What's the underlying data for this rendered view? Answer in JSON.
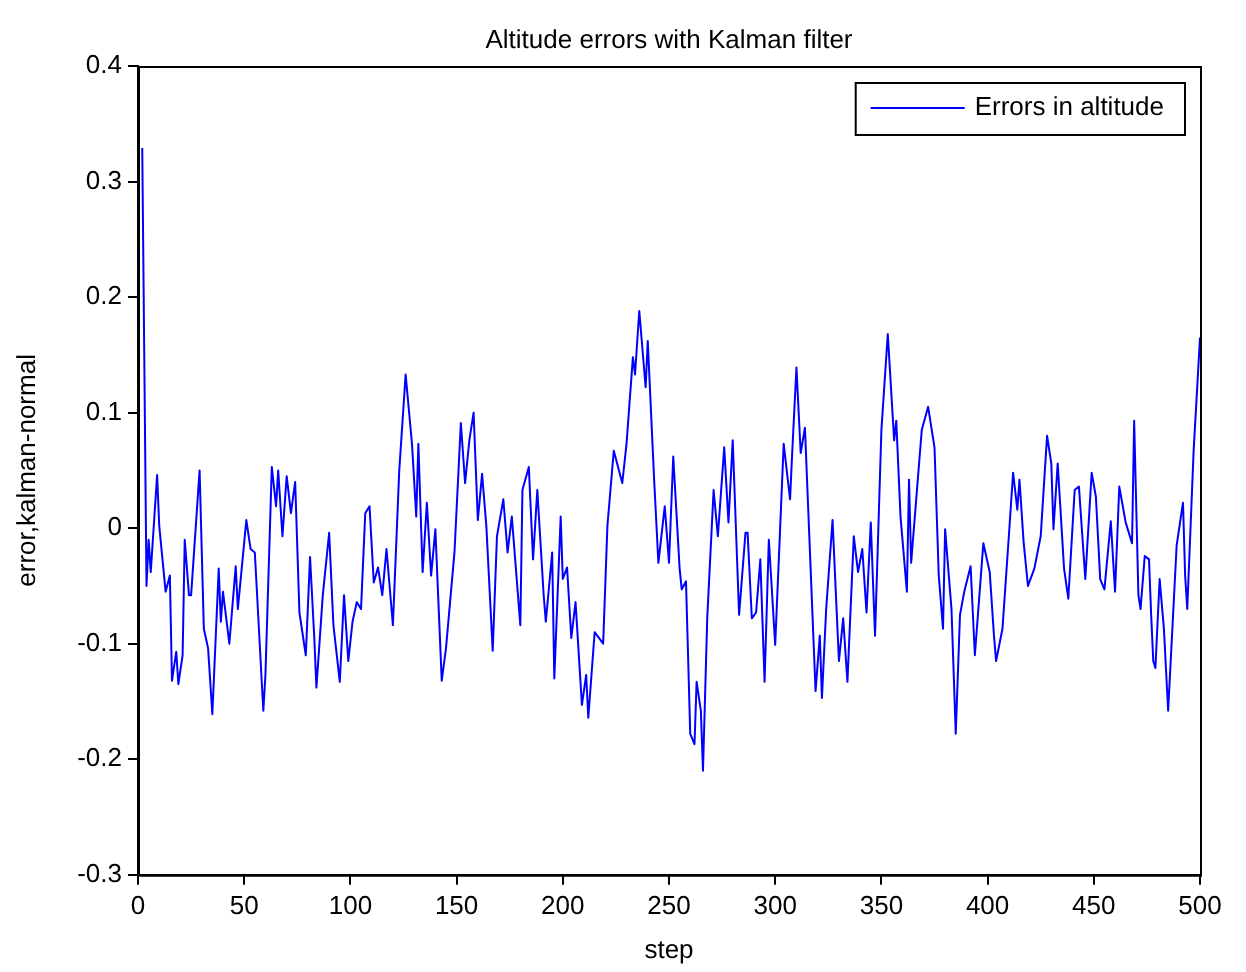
{
  "chart_data": {
    "type": "line",
    "title": "Altitude errors with Kalman filter",
    "xlabel": "step",
    "ylabel": "error,kalman-normal",
    "x": [
      2,
      4,
      5,
      6,
      9,
      10,
      13,
      15,
      16,
      18,
      19,
      21,
      22,
      24,
      25,
      29,
      31,
      33,
      35,
      38,
      39,
      40,
      43,
      46,
      47,
      51,
      53,
      55,
      59,
      60,
      63,
      65,
      66,
      68,
      70,
      72,
      74,
      76,
      79,
      81,
      83,
      84,
      87,
      90,
      92,
      95,
      97,
      99,
      101,
      103,
      105,
      107,
      109,
      111,
      113,
      115,
      117,
      120,
      123,
      126,
      129,
      131,
      132,
      134,
      136,
      138,
      140,
      143,
      145,
      149,
      152,
      154,
      156,
      158,
      160,
      162,
      164,
      167,
      169,
      172,
      174,
      176,
      180,
      181,
      184,
      186,
      188,
      191,
      192,
      195,
      196,
      199,
      200,
      202,
      204,
      206,
      209,
      211,
      212,
      215,
      219,
      221,
      224,
      228,
      230,
      233,
      234,
      236,
      239,
      240,
      243,
      245,
      248,
      250,
      252,
      255,
      256,
      258,
      260,
      262,
      263,
      265,
      266,
      268,
      271,
      273,
      276,
      278,
      280,
      283,
      286,
      287,
      289,
      291,
      293,
      295,
      297,
      300,
      304,
      307,
      308,
      310,
      312,
      314,
      319,
      321,
      322,
      324,
      327,
      330,
      332,
      334,
      337,
      339,
      341,
      343,
      345,
      347,
      350,
      353,
      356,
      357,
      359,
      362,
      363,
      364,
      369,
      372,
      375,
      377,
      379,
      380,
      383,
      385,
      387,
      389,
      392,
      394,
      398,
      401,
      403,
      404,
      407,
      410,
      412,
      414,
      415,
      417,
      419,
      422,
      425,
      428,
      430,
      431,
      433,
      436,
      438,
      441,
      443,
      446,
      449,
      451,
      453,
      455,
      458,
      460,
      462,
      465,
      468,
      469,
      471,
      472,
      474,
      476,
      477,
      478,
      479,
      481,
      483,
      485,
      489,
      491,
      492,
      493,
      494,
      497,
      500
    ],
    "series": [
      {
        "name": "Errors in altitude",
        "color": "#0000ff",
        "values": [
          0.329,
          -0.05,
          -0.01,
          -0.038,
          0.046,
          0.002,
          -0.055,
          -0.041,
          -0.132,
          -0.107,
          -0.135,
          -0.11,
          -0.01,
          -0.058,
          -0.058,
          0.05,
          -0.087,
          -0.104,
          -0.161,
          -0.035,
          -0.081,
          -0.055,
          -0.1,
          -0.033,
          -0.07,
          0.007,
          -0.018,
          -0.021,
          -0.158,
          -0.127,
          0.053,
          0.019,
          0.05,
          -0.007,
          0.045,
          0.013,
          0.04,
          -0.073,
          -0.11,
          -0.025,
          -0.095,
          -0.138,
          -0.058,
          -0.004,
          -0.084,
          -0.133,
          -0.058,
          -0.115,
          -0.081,
          -0.064,
          -0.07,
          0.013,
          0.019,
          -0.047,
          -0.034,
          -0.058,
          -0.018,
          -0.084,
          0.05,
          0.133,
          0.073,
          0.01,
          0.073,
          -0.038,
          0.022,
          -0.041,
          -0.001,
          -0.132,
          -0.104,
          -0.021,
          0.091,
          0.039,
          0.076,
          0.1,
          0.007,
          0.047,
          0.002,
          -0.106,
          -0.007,
          0.025,
          -0.021,
          0.01,
          -0.084,
          0.033,
          0.053,
          -0.027,
          0.033,
          -0.058,
          -0.081,
          -0.021,
          -0.13,
          0.01,
          -0.044,
          -0.034,
          -0.095,
          -0.064,
          -0.153,
          -0.127,
          -0.164,
          -0.09,
          -0.1,
          0.002,
          0.067,
          0.039,
          0.073,
          0.148,
          0.133,
          0.188,
          0.122,
          0.162,
          0.042,
          -0.03,
          0.019,
          -0.03,
          0.062,
          -0.035,
          -0.053,
          -0.046,
          -0.178,
          -0.187,
          -0.133,
          -0.158,
          -0.21,
          -0.078,
          0.033,
          -0.007,
          0.07,
          0.005,
          0.076,
          -0.075,
          -0.004,
          -0.004,
          -0.078,
          -0.073,
          -0.027,
          -0.133,
          -0.01,
          -0.101,
          0.073,
          0.025,
          0.065,
          0.139,
          0.065,
          0.087,
          -0.141,
          -0.093,
          -0.147,
          -0.07,
          0.007,
          -0.115,
          -0.078,
          -0.133,
          -0.007,
          -0.038,
          -0.018,
          -0.073,
          0.005,
          -0.093,
          0.085,
          0.168,
          0.076,
          0.093,
          0.01,
          -0.055,
          0.042,
          -0.03,
          0.085,
          0.105,
          0.07,
          -0.041,
          -0.087,
          -0.001,
          -0.07,
          -0.178,
          -0.075,
          -0.055,
          -0.033,
          -0.11,
          -0.013,
          -0.038,
          -0.093,
          -0.115,
          -0.087,
          -0.007,
          0.048,
          0.016,
          0.042,
          -0.013,
          -0.05,
          -0.035,
          -0.007,
          0.08,
          0.056,
          -0.001,
          0.056,
          -0.035,
          -0.061,
          0.033,
          0.036,
          -0.044,
          0.048,
          0.027,
          -0.044,
          -0.053,
          0.006,
          -0.055,
          0.036,
          0.005,
          -0.013,
          0.093,
          -0.058,
          -0.07,
          -0.024,
          -0.027,
          -0.075,
          -0.115,
          -0.121,
          -0.044,
          -0.087,
          -0.158,
          -0.015,
          0.01,
          0.022,
          -0.041,
          -0.07,
          0.067,
          0.165
        ]
      }
    ],
    "xlim": [
      0,
      500
    ],
    "xticks": [
      0,
      50,
      100,
      150,
      200,
      250,
      300,
      350,
      400,
      450,
      500
    ],
    "ylim": [
      -0.3,
      0.4
    ],
    "yticks": [
      -0.3,
      -0.2,
      -0.1,
      0,
      0.1,
      0.2,
      0.3,
      0.4
    ],
    "grid": false,
    "legend": "top right",
    "marker": "none",
    "line_style": "solid"
  }
}
